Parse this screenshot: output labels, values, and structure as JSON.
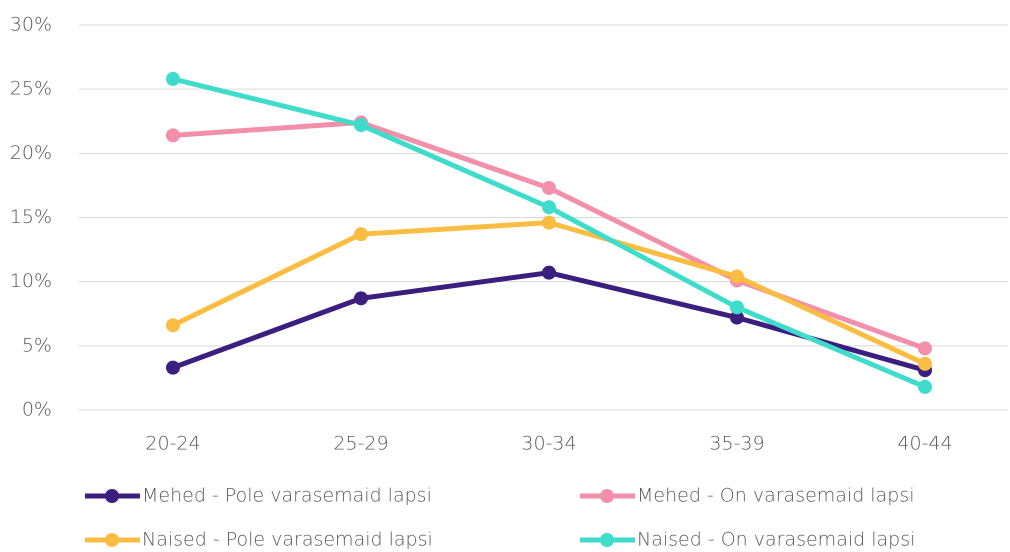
{
  "chart_data": {
    "type": "line",
    "categories": [
      "20-24",
      "25-29",
      "30-34",
      "35-39",
      "40-44"
    ],
    "series": [
      {
        "name": "Mehed - Pole varasemaid lapsi",
        "color": "#3b1f7e",
        "values": [
          3.3,
          8.7,
          10.7,
          7.2,
          3.1
        ]
      },
      {
        "name": "Mehed - On varasemaid lapsi",
        "color": "#f28fab",
        "values": [
          21.4,
          22.4,
          17.3,
          10.1,
          4.8
        ]
      },
      {
        "name": "Naised - Pole varasemaid lapsi",
        "color": "#fbbd41",
        "values": [
          6.6,
          13.7,
          14.6,
          10.4,
          3.6
        ]
      },
      {
        "name": "Naised - On varasemaid lapsi",
        "color": "#3fdccc",
        "values": [
          25.8,
          22.2,
          15.8,
          8.0,
          1.8
        ]
      }
    ],
    "ylim": [
      0,
      30
    ],
    "yticks": [
      {
        "value": 0,
        "label": "0%"
      },
      {
        "value": 5,
        "label": "5%"
      },
      {
        "value": 10,
        "label": "10%"
      },
      {
        "value": 15,
        "label": "15%"
      },
      {
        "value": 20,
        "label": "20%"
      },
      {
        "value": 25,
        "label": "25%"
      },
      {
        "value": 30,
        "label": "30%"
      }
    ],
    "grid": true,
    "legend": "bottom"
  }
}
